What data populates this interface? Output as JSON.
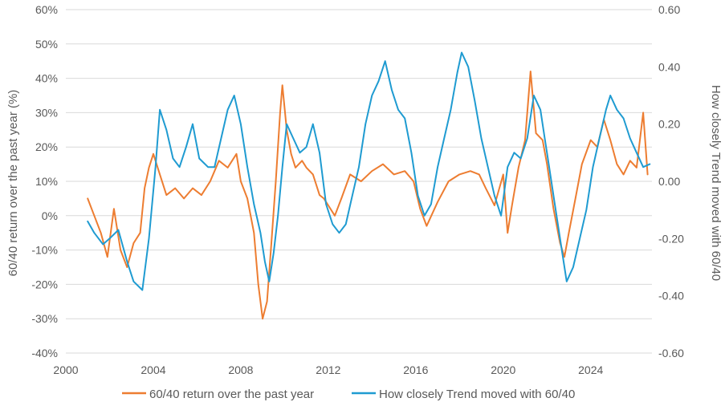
{
  "chart_data": {
    "type": "line",
    "xlabel": "",
    "x_ticks": [
      "2000",
      "2004",
      "2008",
      "2012",
      "2016",
      "2020",
      "2024"
    ],
    "xlim": [
      2000,
      2026.8
    ],
    "y_left": {
      "label": "60/40 return over the past year (%)",
      "ticks": [
        "60%",
        "50%",
        "40%",
        "30%",
        "20%",
        "10%",
        "0%",
        "-10%",
        "-20%",
        "-30%",
        "-40%"
      ],
      "ylim": [
        -40,
        60
      ]
    },
    "y_right": {
      "label": "How closely Trend moved with 60/40",
      "ticks": [
        "0.60",
        "0.40",
        "0.20",
        "0.00",
        "-0.20",
        "-0.40",
        "-0.60"
      ],
      "ylim": [
        -0.6,
        0.6
      ]
    },
    "grid": "horizontal",
    "legend_position": "bottom",
    "series": [
      {
        "name": "60/40 return over the past year",
        "axis": "left",
        "color": "#ED7D31",
        "x": [
          2001.0,
          2001.3,
          2001.6,
          2001.9,
          2002.2,
          2002.5,
          2002.8,
          2003.1,
          2003.4,
          2003.6,
          2003.8,
          2004.0,
          2004.3,
          2004.6,
          2005.0,
          2005.4,
          2005.8,
          2006.2,
          2006.6,
          2007.0,
          2007.4,
          2007.8,
          2008.0,
          2008.3,
          2008.6,
          2008.8,
          2009.0,
          2009.2,
          2009.4,
          2009.6,
          2009.8,
          2009.9,
          2010.1,
          2010.3,
          2010.5,
          2010.8,
          2011.0,
          2011.3,
          2011.6,
          2011.8,
          2012.0,
          2012.3,
          2012.6,
          2013.0,
          2013.5,
          2014.0,
          2014.5,
          2015.0,
          2015.5,
          2015.9,
          2016.2,
          2016.5,
          2017.0,
          2017.5,
          2018.0,
          2018.5,
          2018.9,
          2019.2,
          2019.6,
          2020.0,
          2020.2,
          2020.4,
          2020.7,
          2021.0,
          2021.25,
          2021.5,
          2021.8,
          2022.0,
          2022.3,
          2022.6,
          2022.8,
          2023.0,
          2023.3,
          2023.6,
          2024.0,
          2024.3,
          2024.6,
          2024.9,
          2025.2,
          2025.5,
          2025.8,
          2026.1,
          2026.4,
          2026.6
        ],
        "y": [
          5,
          0,
          -5,
          -12,
          2,
          -10,
          -15,
          -8,
          -5,
          8,
          14,
          18,
          12,
          6,
          8,
          5,
          8,
          6,
          10,
          16,
          14,
          18,
          10,
          5,
          -5,
          -20,
          -30,
          -25,
          -8,
          10,
          30,
          38,
          25,
          18,
          14,
          16,
          14,
          12,
          6,
          5,
          3,
          0,
          5,
          12,
          10,
          13,
          15,
          12,
          13,
          10,
          2,
          -3,
          4,
          10,
          12,
          13,
          12,
          8,
          3,
          12,
          -5,
          3,
          14,
          22,
          42,
          24,
          22,
          15,
          2,
          -8,
          -12,
          -5,
          5,
          15,
          22,
          20,
          28,
          22,
          15,
          12,
          16,
          14,
          30,
          12
        ],
        "note_unit": "%"
      },
      {
        "name": "How closely Trend moved with 60/40",
        "axis": "right",
        "color": "#1F9BD1",
        "x": [
          2001.0,
          2001.3,
          2001.7,
          2002.0,
          2002.4,
          2002.8,
          2003.1,
          2003.5,
          2003.8,
          2004.1,
          2004.3,
          2004.6,
          2004.9,
          2005.2,
          2005.5,
          2005.8,
          2006.1,
          2006.5,
          2006.8,
          2007.1,
          2007.4,
          2007.7,
          2008.0,
          2008.3,
          2008.6,
          2008.9,
          2009.1,
          2009.3,
          2009.5,
          2009.7,
          2009.9,
          2010.1,
          2010.4,
          2010.7,
          2011.0,
          2011.3,
          2011.6,
          2011.9,
          2012.2,
          2012.5,
          2012.8,
          2013.1,
          2013.4,
          2013.7,
          2014.0,
          2014.3,
          2014.6,
          2014.9,
          2015.2,
          2015.5,
          2015.8,
          2016.1,
          2016.4,
          2016.7,
          2017.0,
          2017.3,
          2017.6,
          2017.9,
          2018.1,
          2018.4,
          2018.7,
          2019.0,
          2019.3,
          2019.6,
          2019.9,
          2020.2,
          2020.5,
          2020.8,
          2021.1,
          2021.4,
          2021.7,
          2021.9,
          2022.1,
          2022.4,
          2022.7,
          2022.9,
          2023.2,
          2023.5,
          2023.8,
          2024.1,
          2024.4,
          2024.7,
          2024.9,
          2025.2,
          2025.5,
          2025.8,
          2026.1,
          2026.4,
          2026.7
        ],
        "y": [
          -0.14,
          -0.18,
          -0.22,
          -0.2,
          -0.17,
          -0.28,
          -0.35,
          -0.38,
          -0.2,
          0.05,
          0.25,
          0.18,
          0.08,
          0.05,
          0.12,
          0.2,
          0.08,
          0.05,
          0.05,
          0.15,
          0.25,
          0.3,
          0.2,
          0.05,
          -0.08,
          -0.18,
          -0.28,
          -0.35,
          -0.25,
          -0.12,
          0.05,
          0.2,
          0.15,
          0.1,
          0.12,
          0.2,
          0.1,
          -0.08,
          -0.15,
          -0.18,
          -0.15,
          -0.05,
          0.05,
          0.2,
          0.3,
          0.35,
          0.42,
          0.32,
          0.25,
          0.22,
          0.1,
          -0.05,
          -0.12,
          -0.08,
          0.05,
          0.15,
          0.25,
          0.38,
          0.45,
          0.4,
          0.28,
          0.15,
          0.05,
          -0.05,
          -0.12,
          0.05,
          0.1,
          0.08,
          0.15,
          0.3,
          0.25,
          0.15,
          0.05,
          -0.1,
          -0.25,
          -0.35,
          -0.3,
          -0.2,
          -0.1,
          0.05,
          0.15,
          0.25,
          0.3,
          0.25,
          0.22,
          0.15,
          0.1,
          0.05,
          0.06
        ]
      }
    ]
  }
}
